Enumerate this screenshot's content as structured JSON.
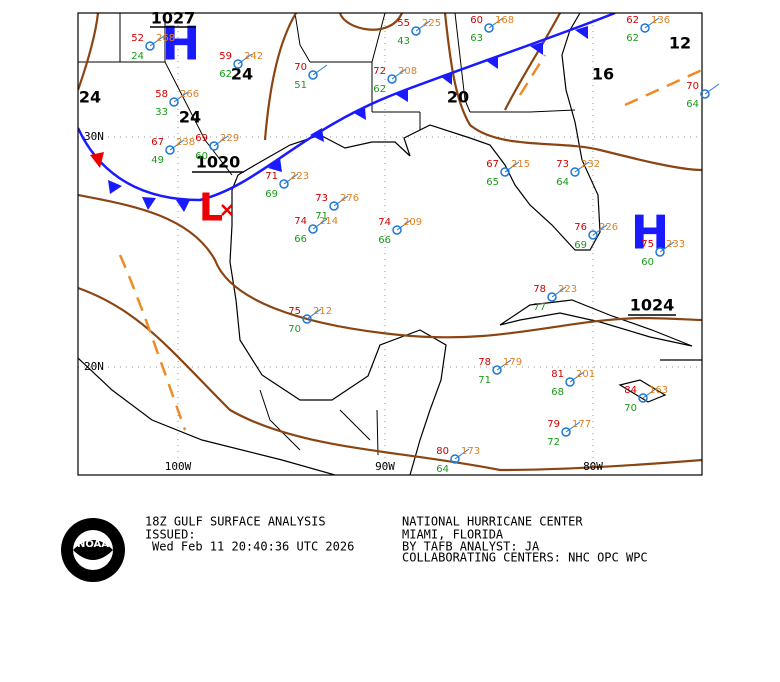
{
  "map": {
    "highs": [
      {
        "label": "H",
        "pressure": 1027
      },
      {
        "label": "H",
        "pressure": 1024
      }
    ],
    "low": {
      "label": "L",
      "pressure": 1020
    },
    "isobar_labels": [
      24,
      24,
      24,
      20,
      16,
      12
    ],
    "lat_labels": [
      "30N",
      "20N"
    ],
    "lon_labels": [
      "100W",
      "90W",
      "80W"
    ]
  },
  "stations": [
    {
      "temp": 55,
      "dew": 43,
      "pressure": 225
    },
    {
      "temp": 60,
      "dew": 63,
      "pressure": 168
    },
    {
      "temp": 52,
      "dew": 24,
      "pressure": 268
    },
    {
      "temp": 59,
      "dew": 62,
      "pressure": 242
    },
    {
      "temp": 58,
      "dew": 33,
      "pressure": 266
    },
    {
      "temp": 69,
      "dew": 60,
      "pressure": 229
    },
    {
      "temp": 67,
      "dew": 49,
      "pressure": 238
    },
    {
      "temp": 72,
      "dew": 62,
      "pressure": 208
    },
    {
      "temp": 70,
      "dew": 51
    },
    {
      "temp": 67,
      "dew": 65,
      "pressure": 215
    },
    {
      "temp": 73,
      "dew": 64,
      "pressure": 232
    },
    {
      "temp": 71,
      "dew": 69,
      "pressure": 223
    },
    {
      "temp": 73,
      "dew": 71,
      "pressure": 276
    },
    {
      "temp": 74,
      "dew": 66,
      "pressure": 209
    },
    {
      "temp": 74,
      "dew": 66,
      "pressure": 214
    },
    {
      "temp": 75,
      "dew": 70,
      "pressure": 212
    },
    {
      "temp": 78,
      "dew": 77,
      "pressure": 223
    },
    {
      "temp": 78,
      "dew": 71,
      "pressure": 179
    },
    {
      "temp": 81,
      "dew": 68,
      "pressure": 201
    },
    {
      "temp": 79,
      "dew": 72,
      "pressure": 177
    },
    {
      "temp": 80,
      "dew": 64,
      "pressure": 173
    },
    {
      "temp": 84,
      "dew": 70,
      "pressure": 163
    },
    {
      "temp": 62,
      "dew": 62,
      "pressure": 136
    },
    {
      "temp": 70,
      "dew": 64
    },
    {
      "temp": 76,
      "dew": 69,
      "pressure": 226
    },
    {
      "temp": 75,
      "dew": 60,
      "pressure": 233
    }
  ],
  "footer": {
    "title": "18Z GULF SURFACE ANALYSIS",
    "issued": "ISSUED:",
    "timestamp": "Wed Feb 11 20:40:36 UTC 2026",
    "center": "NATIONAL HURRICANE CENTER",
    "location": "MIAMI,  FLORIDA",
    "analyst": "BY TAFB ANALYST: JA",
    "collaborating": "COLLABORATING CENTERS: NHC OPC WPC",
    "logo": "NOAA"
  }
}
